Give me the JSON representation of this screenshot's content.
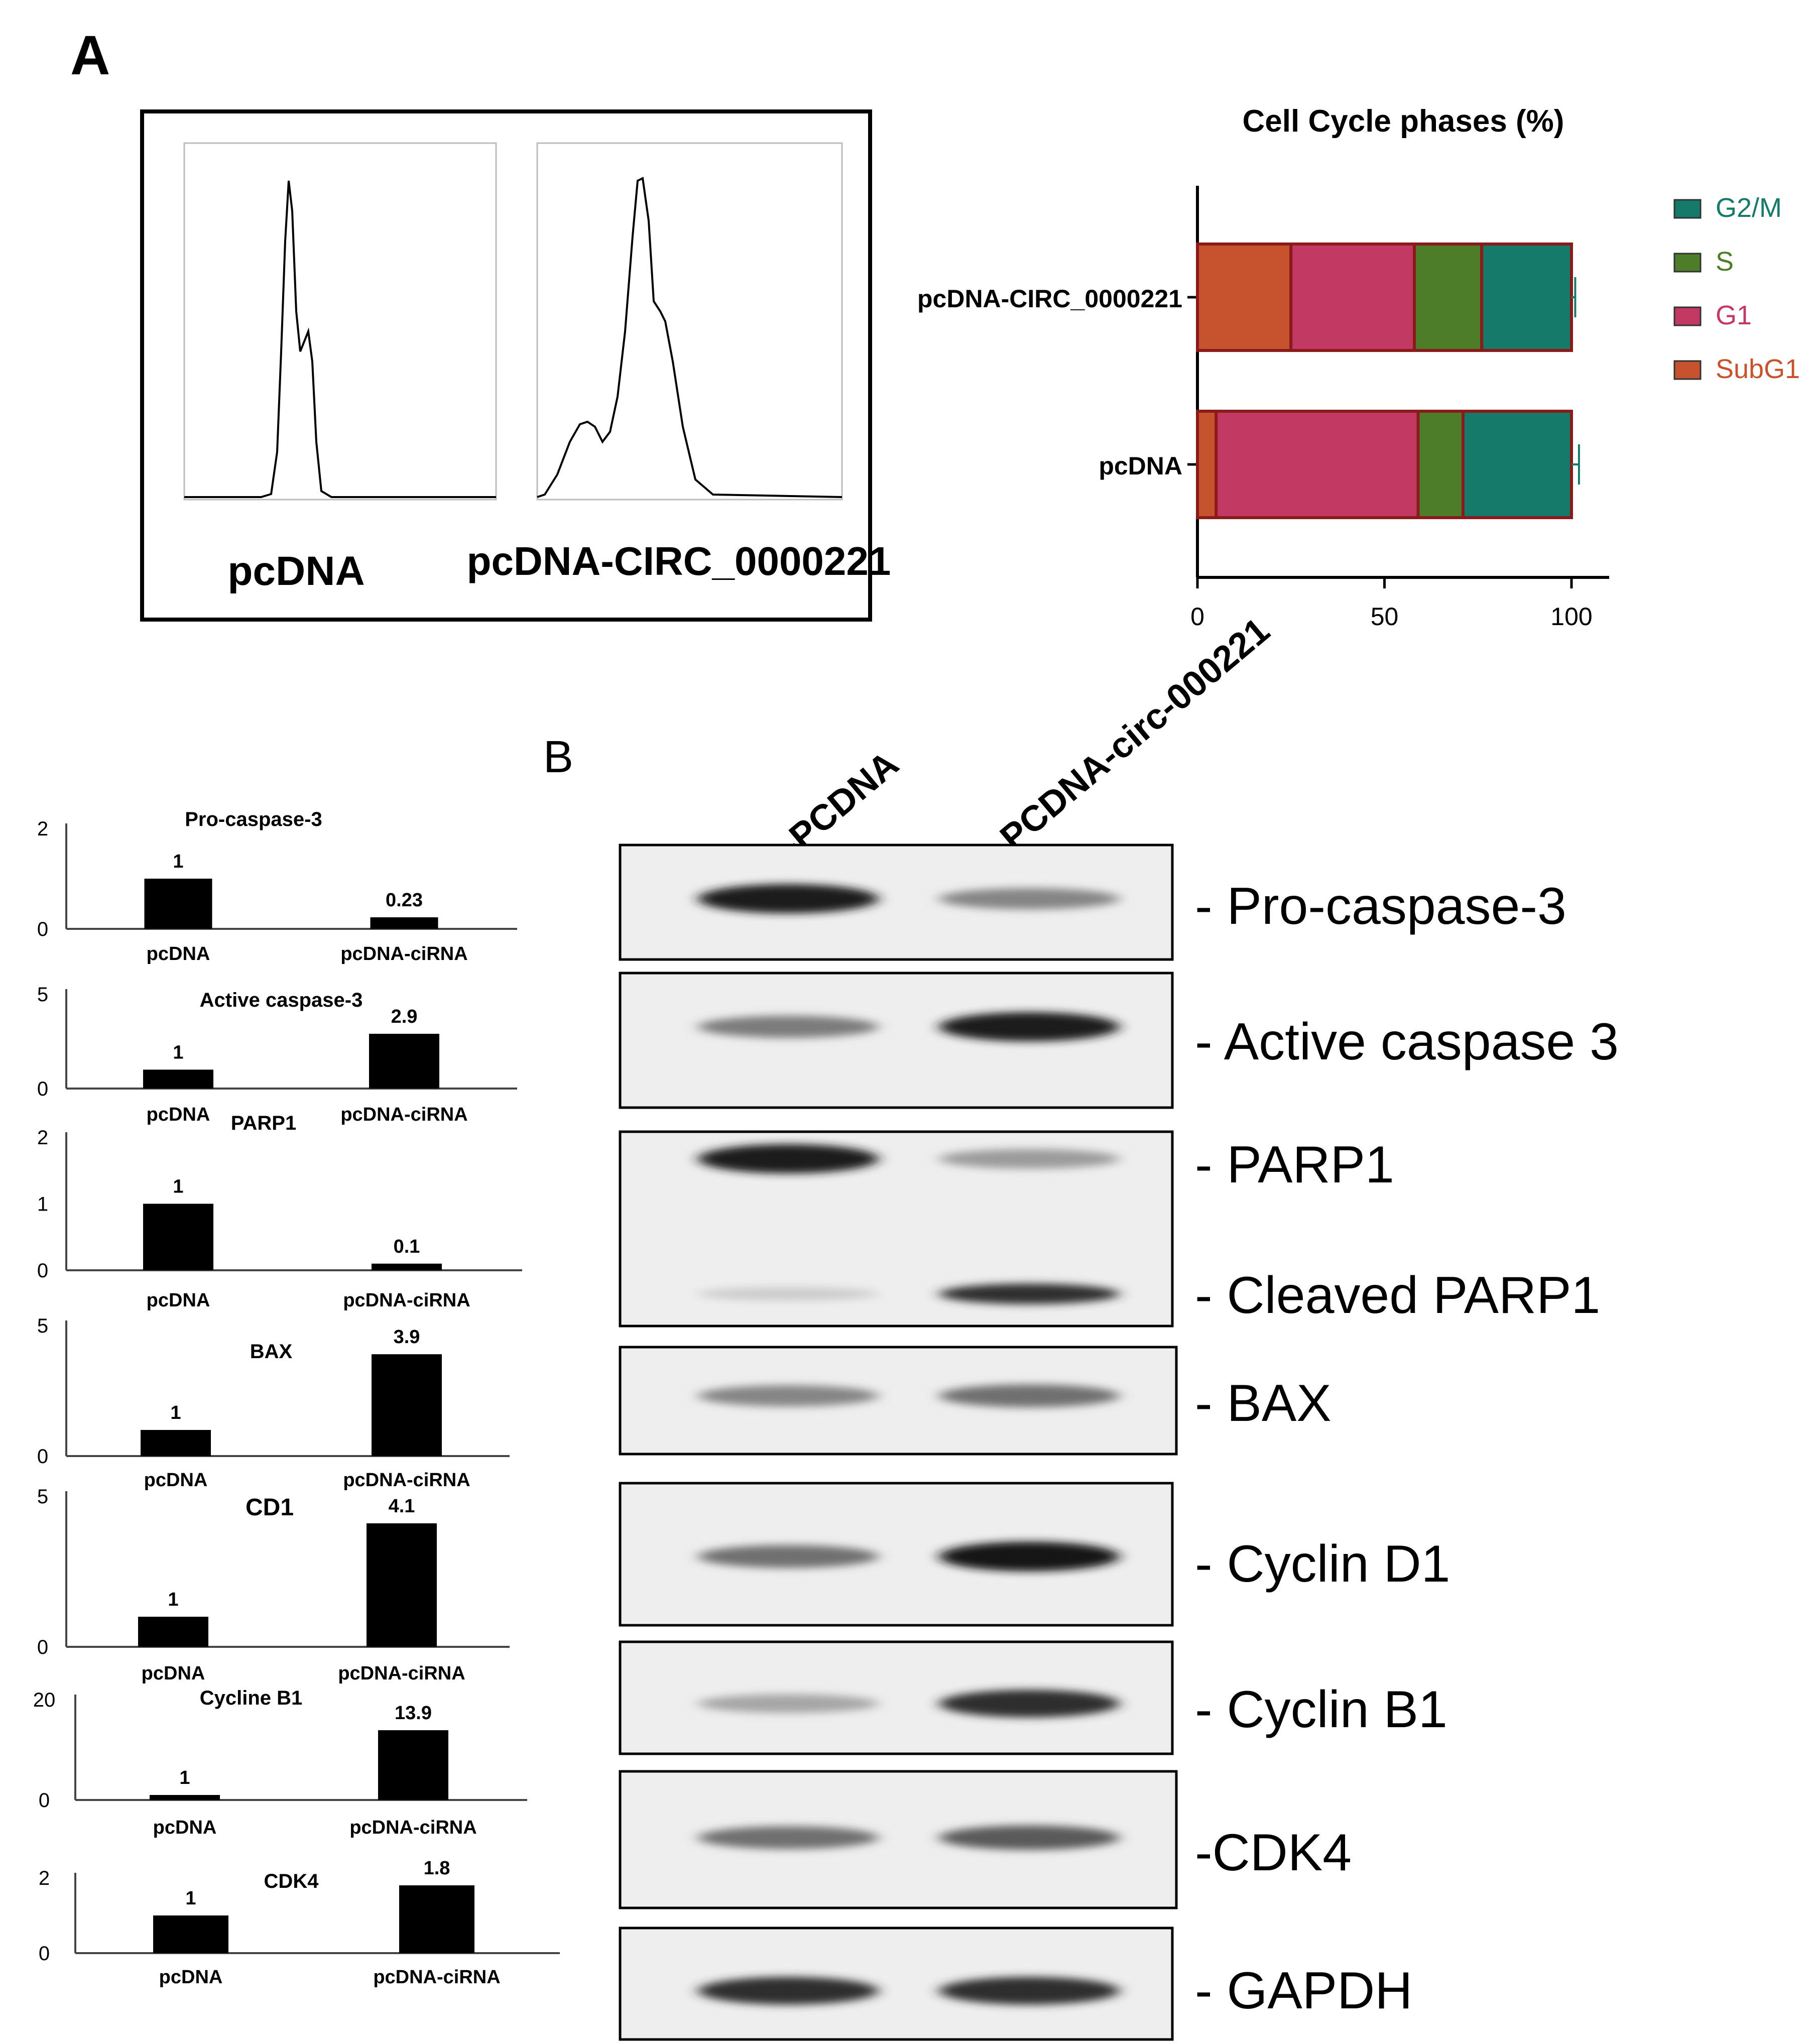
{
  "panelA": {
    "label": "A",
    "histogram_labels": [
      "pcDNA",
      "pcDNA-CIRC_0000221"
    ]
  },
  "chart_data": [
    {
      "type": "bar",
      "stacked": true,
      "orientation": "horizontal",
      "title": "Cell Cycle phases (%)",
      "categories": [
        "pcDNA-CIRC_0000221",
        "pcDNA"
      ],
      "series": [
        {
          "name": "SubG1",
          "values": [
            25,
            5
          ],
          "error": [
            3,
            6
          ],
          "color": "#c6532e"
        },
        {
          "name": "G1",
          "values": [
            33,
            54
          ],
          "error": [
            1.5,
            2.5
          ],
          "color": "#c23a63"
        },
        {
          "name": "S",
          "values": [
            18,
            12
          ],
          "error": [
            1.5,
            1.5
          ],
          "color": "#4e7d2a"
        },
        {
          "name": "G2/M",
          "values": [
            24,
            29
          ],
          "error": [
            1,
            2
          ],
          "color": "#157a6a"
        }
      ],
      "xlim": [
        0,
        110
      ],
      "xticks": [
        0,
        50,
        100
      ],
      "legend": "right",
      "legend_order": [
        "G2/M",
        "S",
        "G1",
        "SubG1"
      ]
    },
    {
      "type": "bar",
      "title": "Pro-caspase-3",
      "categories": [
        "pcDNA",
        "pcDNA-ciRNA"
      ],
      "values": [
        1,
        0.23
      ],
      "value_labels": [
        "1",
        "0.23"
      ],
      "yticks": [
        0,
        2
      ],
      "ylim": [
        0,
        2
      ]
    },
    {
      "type": "bar",
      "title": "Active caspase-3",
      "categories": [
        "pcDNA",
        "pcDNA-ciRNA"
      ],
      "values": [
        1,
        2.9
      ],
      "value_labels": [
        "1",
        "2.9"
      ],
      "yticks": [
        0,
        5
      ],
      "ylim": [
        0,
        5
      ]
    },
    {
      "type": "bar",
      "title": "PARP1",
      "categories": [
        "pcDNA",
        "pcDNA-ciRNA"
      ],
      "values": [
        1,
        0.1
      ],
      "value_labels": [
        "1",
        "0.1"
      ],
      "yticks": [
        0,
        1,
        2
      ],
      "ylim": [
        0,
        2
      ]
    },
    {
      "type": "bar",
      "title": "BAX",
      "categories": [
        "pcDNA",
        "pcDNA-ciRNA"
      ],
      "values": [
        1,
        3.9
      ],
      "value_labels": [
        "1",
        "3.9"
      ],
      "yticks": [
        0,
        5
      ],
      "ylim": [
        0,
        5
      ]
    },
    {
      "type": "bar",
      "title": "CD1",
      "categories": [
        "pcDNA",
        "pcDNA-ciRNA"
      ],
      "values": [
        1,
        4.1
      ],
      "value_labels": [
        "1",
        "4.1"
      ],
      "yticks": [
        0,
        5
      ],
      "ylim": [
        0,
        5
      ]
    },
    {
      "type": "bar",
      "title": "Cycline B1",
      "categories": [
        "pcDNA",
        "pcDNA-ciRNA"
      ],
      "values": [
        1,
        13.9
      ],
      "value_labels": [
        "1",
        "13.9"
      ],
      "yticks": [
        0,
        20
      ],
      "ylim": [
        0,
        20
      ]
    },
    {
      "type": "bar",
      "title": "CDK4",
      "categories": [
        "pcDNA",
        "pcDNA-ciRNA"
      ],
      "values": [
        1,
        1.8
      ],
      "value_labels": [
        "1",
        "1.8"
      ],
      "yticks": [
        0,
        2
      ],
      "ylim": [
        0,
        2
      ]
    }
  ],
  "panelB": {
    "label": "B",
    "lanes": [
      "-PCDNA",
      "-PCDNA-circ-000221"
    ],
    "blots": [
      {
        "label": "- Pro-caspase-3",
        "bands": [
          {
            "lane": 0,
            "intensity": 0.95
          },
          {
            "lane": 1,
            "intensity": 0.45
          }
        ]
      },
      {
        "label": "- Active caspase 3",
        "bands": [
          {
            "lane": 0,
            "intensity": 0.5
          },
          {
            "lane": 1,
            "intensity": 0.95
          }
        ]
      },
      {
        "label": "- PARP1",
        "label2": "- Cleaved PARP1",
        "bands": [
          {
            "lane": 0,
            "intensity": 0.95
          },
          {
            "lane": 1,
            "intensity": 0.35
          }
        ],
        "bands2": [
          {
            "lane": 0,
            "intensity": 0.12
          },
          {
            "lane": 1,
            "intensity": 0.85
          }
        ]
      },
      {
        "label": "- BAX",
        "bands": [
          {
            "lane": 0,
            "intensity": 0.45
          },
          {
            "lane": 1,
            "intensity": 0.55
          }
        ]
      },
      {
        "label": "- Cyclin D1",
        "bands": [
          {
            "lane": 0,
            "intensity": 0.55
          },
          {
            "lane": 1,
            "intensity": 0.98
          }
        ]
      },
      {
        "label": " - Cyclin B1",
        "bands": [
          {
            "lane": 0,
            "intensity": 0.3
          },
          {
            "lane": 1,
            "intensity": 0.85
          }
        ]
      },
      {
        "label": "-CDK4",
        "bands": [
          {
            "lane": 0,
            "intensity": 0.55
          },
          {
            "lane": 1,
            "intensity": 0.65
          }
        ]
      },
      {
        "label": "- GAPDH",
        "bands": [
          {
            "lane": 0,
            "intensity": 0.85
          },
          {
            "lane": 1,
            "intensity": 0.85
          }
        ]
      }
    ]
  }
}
